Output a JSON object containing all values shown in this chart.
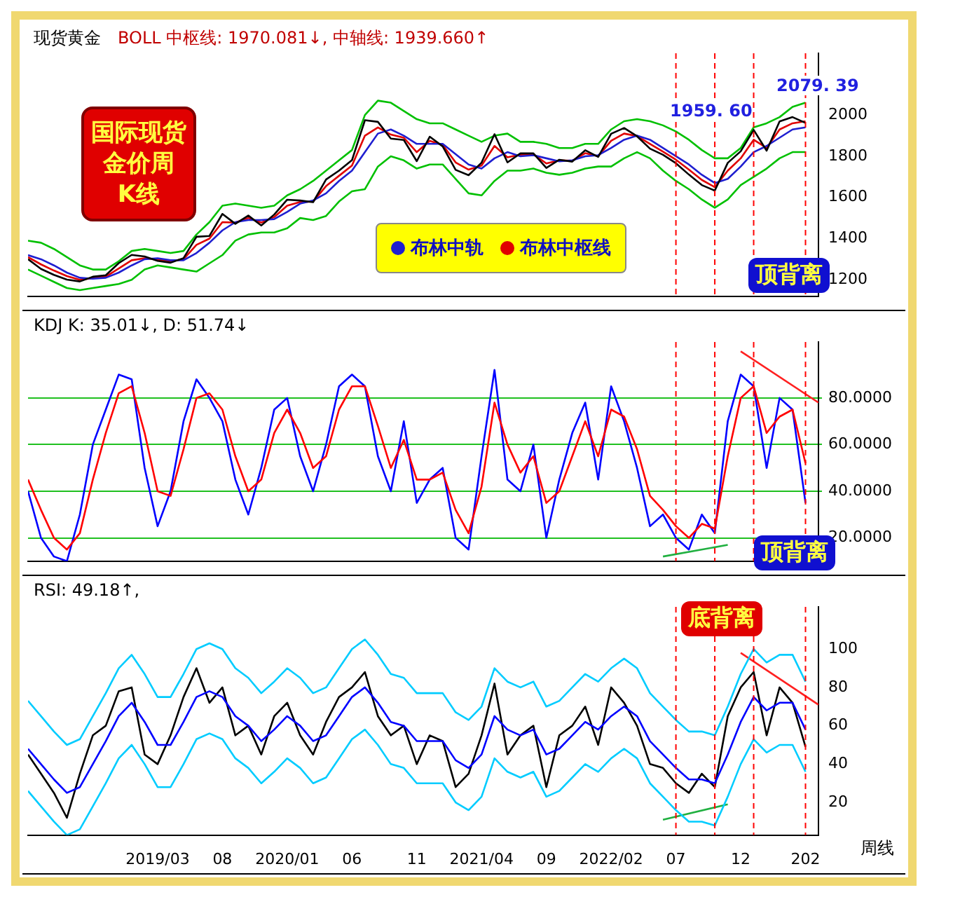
{
  "chart_data": [
    {
      "type": "line",
      "title": "现货黄金",
      "subtitle": "BOLL 中枢线: 1970.081↓, 中轴线: 1939.660↑",
      "xlim": [
        "2018-05",
        "2023-06"
      ],
      "ylim": [
        1120,
        2300
      ],
      "yticks": [
        1200,
        1400,
        1600,
        1800,
        2000
      ],
      "tick_labels": "y",
      "legend": "bottom",
      "x": [
        "2018-05",
        "2018-06",
        "2018-07",
        "2018-08",
        "2018-09",
        "2018-10",
        "2018-11",
        "2018-12",
        "2019-01",
        "2019-02",
        "2019-03",
        "2019-04",
        "2019-05",
        "2019-06",
        "2019-07",
        "2019-08",
        "2019-09",
        "2019-10",
        "2019-11",
        "2019-12",
        "2020-01",
        "2020-02",
        "2020-03",
        "2020-04",
        "2020-05",
        "2020-06",
        "2020-07",
        "2020-08",
        "2020-09",
        "2020-10",
        "2020-11",
        "2020-12",
        "2021-01",
        "2021-02",
        "2021-03",
        "2021-04",
        "2021-05",
        "2021-06",
        "2021-07",
        "2021-08",
        "2021-09",
        "2021-10",
        "2021-11",
        "2021-12",
        "2022-01",
        "2022-02",
        "2022-03",
        "2022-04",
        "2022-05",
        "2022-06",
        "2022-07",
        "2022-08",
        "2022-09",
        "2022-10",
        "2022-11",
        "2022-12",
        "2023-01",
        "2023-02",
        "2023-03",
        "2023-04",
        "2023-05"
      ],
      "series": [
        {
          "color": "#000000",
          "values": [
            1300,
            1253,
            1224,
            1201,
            1192,
            1215,
            1222,
            1281,
            1321,
            1313,
            1292,
            1283,
            1305,
            1409,
            1413,
            1520,
            1472,
            1512,
            1464,
            1517,
            1589,
            1585,
            1577,
            1687,
            1730,
            1781,
            1975,
            1967,
            1886,
            1879,
            1776,
            1895,
            1848,
            1734,
            1708,
            1769,
            1907,
            1770,
            1814,
            1814,
            1743,
            1783,
            1774,
            1829,
            1797,
            1909,
            1937,
            1897,
            1837,
            1807,
            1766,
            1711,
            1660,
            1633,
            1768,
            1824,
            1928,
            1827,
            1969,
            1990,
            1962
          ]
        },
        {
          "color": "#00c000",
          "values": [
            1390,
            1380,
            1350,
            1310,
            1270,
            1250,
            1250,
            1290,
            1340,
            1350,
            1340,
            1330,
            1340,
            1420,
            1480,
            1560,
            1570,
            1560,
            1550,
            1560,
            1610,
            1640,
            1680,
            1730,
            1780,
            1830,
            2000,
            2070,
            2060,
            2020,
            1980,
            1960,
            1960,
            1930,
            1900,
            1870,
            1900,
            1910,
            1870,
            1870,
            1860,
            1840,
            1840,
            1860,
            1860,
            1930,
            1970,
            1980,
            1970,
            1950,
            1920,
            1880,
            1830,
            1790,
            1790,
            1840,
            1940,
            1960,
            1990,
            2040,
            2060
          ]
        },
        {
          "color": "#00c000",
          "values": [
            1250,
            1220,
            1190,
            1160,
            1150,
            1160,
            1170,
            1180,
            1200,
            1250,
            1270,
            1260,
            1250,
            1240,
            1280,
            1320,
            1390,
            1420,
            1430,
            1430,
            1450,
            1500,
            1490,
            1510,
            1580,
            1630,
            1640,
            1750,
            1800,
            1780,
            1740,
            1760,
            1760,
            1690,
            1620,
            1610,
            1680,
            1730,
            1730,
            1740,
            1720,
            1710,
            1720,
            1740,
            1750,
            1750,
            1790,
            1820,
            1790,
            1730,
            1680,
            1640,
            1590,
            1550,
            1590,
            1660,
            1700,
            1740,
            1790,
            1820,
            1820
          ]
        },
        {
          "name": "布林中轨",
          "color": "#1f1fd0",
          "values": [
            1320,
            1300,
            1270,
            1235,
            1210,
            1205,
            1210,
            1235,
            1270,
            1300,
            1305,
            1295,
            1295,
            1330,
            1380,
            1440,
            1480,
            1490,
            1490,
            1495,
            1530,
            1570,
            1585,
            1620,
            1680,
            1730,
            1820,
            1910,
            1930,
            1900,
            1860,
            1860,
            1860,
            1810,
            1760,
            1740,
            1790,
            1820,
            1800,
            1805,
            1790,
            1775,
            1780,
            1800,
            1805,
            1840,
            1880,
            1900,
            1880,
            1840,
            1800,
            1760,
            1710,
            1670,
            1690,
            1750,
            1820,
            1850,
            1890,
            1930,
            1940
          ]
        },
        {
          "name": "布林中枢线",
          "color": "#e00000",
          "values": [
            1310,
            1275,
            1245,
            1218,
            1200,
            1208,
            1215,
            1255,
            1295,
            1305,
            1298,
            1290,
            1300,
            1370,
            1400,
            1480,
            1478,
            1500,
            1478,
            1505,
            1560,
            1578,
            1580,
            1655,
            1705,
            1755,
            1900,
            1940,
            1905,
            1890,
            1820,
            1875,
            1855,
            1770,
            1735,
            1755,
            1850,
            1795,
            1808,
            1810,
            1765,
            1780,
            1778,
            1815,
            1800,
            1875,
            1910,
            1898,
            1860,
            1822,
            1783,
            1735,
            1685,
            1650,
            1730,
            1790,
            1880,
            1840,
            1930,
            1960,
            1970
          ]
        }
      ],
      "ref_lines": [
        {
          "axis": "x",
          "value": "2022-07",
          "color": "#ff0000",
          "line_style": "dashed"
        },
        {
          "axis": "x",
          "value": "2022-10",
          "color": "#ff0000",
          "line_style": "dashed"
        },
        {
          "axis": "x",
          "value": "2023-01",
          "color": "#ff0000",
          "line_style": "dashed"
        },
        {
          "axis": "x",
          "value": "2023-05",
          "color": "#ff0000",
          "line_style": "dashed"
        }
      ],
      "annotations": [
        "国际现货金价周 K线",
        "2079. 39",
        "1959. 60",
        "顶背离"
      ]
    },
    {
      "type": "line",
      "title": "KDJ K: 35.01↓, D: 51.74↓",
      "xlim": [
        "2018-05",
        "2023-06"
      ],
      "ylim": [
        10,
        104
      ],
      "yticks": [
        {
          "value": 20,
          "label": "20.0000"
        },
        {
          "value": 40,
          "label": "40.0000"
        },
        {
          "value": 60,
          "label": "60.0000"
        },
        {
          "value": 80,
          "label": "80.0000"
        }
      ],
      "tick_labels": "y",
      "grid": "y",
      "x": [
        "2018-05",
        "2018-06",
        "2018-07",
        "2018-08",
        "2018-09",
        "2018-10",
        "2018-11",
        "2018-12",
        "2019-01",
        "2019-02",
        "2019-03",
        "2019-04",
        "2019-05",
        "2019-06",
        "2019-07",
        "2019-08",
        "2019-09",
        "2019-10",
        "2019-11",
        "2019-12",
        "2020-01",
        "2020-02",
        "2020-03",
        "2020-04",
        "2020-05",
        "2020-06",
        "2020-07",
        "2020-08",
        "2020-09",
        "2020-10",
        "2020-11",
        "2020-12",
        "2021-01",
        "2021-02",
        "2021-03",
        "2021-04",
        "2021-05",
        "2021-06",
        "2021-07",
        "2021-08",
        "2021-09",
        "2021-10",
        "2021-11",
        "2021-12",
        "2022-01",
        "2022-02",
        "2022-03",
        "2022-04",
        "2022-05",
        "2022-06",
        "2022-07",
        "2022-08",
        "2022-09",
        "2022-10",
        "2022-11",
        "2022-12",
        "2023-01",
        "2023-02",
        "2023-03",
        "2023-04",
        "2023-05"
      ],
      "series": [
        {
          "color": "#ff0000",
          "values": [
            45,
            32,
            20,
            15,
            22,
            45,
            65,
            82,
            85,
            65,
            40,
            38,
            58,
            80,
            82,
            75,
            55,
            40,
            45,
            65,
            75,
            65,
            50,
            55,
            75,
            85,
            85,
            68,
            50,
            62,
            45,
            45,
            48,
            32,
            22,
            42,
            78,
            60,
            48,
            55,
            35,
            40,
            55,
            70,
            55,
            75,
            72,
            58,
            38,
            32,
            25,
            20,
            26,
            24,
            55,
            80,
            85,
            65,
            72,
            75,
            52
          ]
        },
        {
          "color": "#0000ff",
          "values": [
            40,
            20,
            12,
            10,
            30,
            60,
            75,
            90,
            88,
            50,
            25,
            40,
            70,
            88,
            80,
            70,
            45,
            30,
            50,
            75,
            80,
            55,
            40,
            60,
            85,
            90,
            85,
            55,
            40,
            70,
            35,
            45,
            50,
            20,
            15,
            55,
            92,
            45,
            40,
            60,
            20,
            45,
            65,
            78,
            45,
            85,
            70,
            50,
            25,
            30,
            20,
            15,
            30,
            22,
            70,
            90,
            85,
            50,
            80,
            75,
            35
          ]
        },
        {
          "type": "line",
          "color": "#20b040",
          "x": [
            "2022-06",
            "2022-11"
          ],
          "values": [
            12,
            17
          ]
        },
        {
          "type": "line",
          "color": "#ff2020",
          "x": [
            "2022-12",
            "2023-06"
          ],
          "values": [
            100,
            78
          ]
        }
      ],
      "ref_lines": [
        {
          "axis": "x",
          "value": "2022-07",
          "color": "#ff0000",
          "line_style": "dashed"
        },
        {
          "axis": "x",
          "value": "2022-10",
          "color": "#ff0000",
          "line_style": "dashed"
        },
        {
          "axis": "x",
          "value": "2023-01",
          "color": "#ff0000",
          "line_style": "dashed"
        },
        {
          "axis": "x",
          "value": "2023-05",
          "color": "#ff0000",
          "line_style": "dashed"
        }
      ],
      "annotations": [
        "顶背离"
      ]
    },
    {
      "type": "line",
      "title": "RSI: 49.18↑,",
      "xlim": [
        "2018-05",
        "2023-06"
      ],
      "ylim": [
        3,
        122
      ],
      "yticks": [
        20,
        40,
        60,
        80,
        100
      ],
      "xticks": [
        {
          "value": "2019-03",
          "label": "2019/03"
        },
        {
          "value": "2019-08",
          "label": "08"
        },
        {
          "value": "2020-01",
          "label": "2020/01"
        },
        {
          "value": "2020-06",
          "label": "06"
        },
        {
          "value": "2020-11",
          "label": "11"
        },
        {
          "value": "2021-04",
          "label": "2021/04"
        },
        {
          "value": "2021-09",
          "label": "09"
        },
        {
          "value": "2022-02",
          "label": "2022/02"
        },
        {
          "value": "2022-07",
          "label": "07"
        },
        {
          "value": "2022-12",
          "label": "12"
        },
        {
          "value": "2023-05",
          "label": "202"
        }
      ],
      "x": [
        "2018-05",
        "2018-06",
        "2018-07",
        "2018-08",
        "2018-09",
        "2018-10",
        "2018-11",
        "2018-12",
        "2019-01",
        "2019-02",
        "2019-03",
        "2019-04",
        "2019-05",
        "2019-06",
        "2019-07",
        "2019-08",
        "2019-09",
        "2019-10",
        "2019-11",
        "2019-12",
        "2020-01",
        "2020-02",
        "2020-03",
        "2020-04",
        "2020-05",
        "2020-06",
        "2020-07",
        "2020-08",
        "2020-09",
        "2020-10",
        "2020-11",
        "2020-12",
        "2021-01",
        "2021-02",
        "2021-03",
        "2021-04",
        "2021-05",
        "2021-06",
        "2021-07",
        "2021-08",
        "2021-09",
        "2021-10",
        "2021-11",
        "2021-12",
        "2022-01",
        "2022-02",
        "2022-03",
        "2022-04",
        "2022-05",
        "2022-06",
        "2022-07",
        "2022-08",
        "2022-09",
        "2022-10",
        "2022-11",
        "2022-12",
        "2023-01",
        "2023-02",
        "2023-03",
        "2023-04",
        "2023-05"
      ],
      "series": [
        {
          "color": "#00ccff",
          "values": [
            73,
            65,
            57,
            50,
            53,
            65,
            77,
            90,
            97,
            87,
            75,
            75,
            87,
            100,
            103,
            100,
            90,
            85,
            77,
            83,
            90,
            85,
            77,
            80,
            90,
            100,
            105,
            97,
            87,
            85,
            77,
            77,
            77,
            67,
            63,
            70,
            90,
            83,
            80,
            83,
            70,
            73,
            80,
            87,
            83,
            90,
            95,
            90,
            77,
            70,
            63,
            57,
            57,
            55,
            70,
            87,
            100,
            93,
            97,
            97,
            83
          ]
        },
        {
          "color": "#00ccff",
          "values": [
            26,
            18,
            10,
            3,
            6,
            18,
            30,
            43,
            50,
            40,
            28,
            28,
            40,
            53,
            56,
            53,
            43,
            38,
            30,
            36,
            43,
            38,
            30,
            33,
            43,
            53,
            58,
            50,
            40,
            38,
            30,
            30,
            30,
            20,
            16,
            23,
            43,
            36,
            33,
            36,
            23,
            26,
            33,
            40,
            36,
            43,
            48,
            43,
            30,
            23,
            16,
            10,
            10,
            8,
            23,
            40,
            53,
            46,
            50,
            50,
            36
          ]
        },
        {
          "color": "#0000ff",
          "values": [
            48,
            40,
            32,
            25,
            28,
            40,
            52,
            65,
            72,
            62,
            50,
            50,
            62,
            75,
            78,
            75,
            65,
            60,
            52,
            58,
            65,
            60,
            52,
            55,
            65,
            75,
            80,
            72,
            62,
            60,
            52,
            52,
            52,
            42,
            38,
            45,
            65,
            58,
            55,
            58,
            45,
            48,
            55,
            62,
            58,
            65,
            70,
            65,
            52,
            45,
            38,
            32,
            32,
            30,
            45,
            62,
            75,
            68,
            72,
            72,
            58
          ]
        },
        {
          "color": "#000000",
          "values": [
            45,
            35,
            25,
            12,
            35,
            55,
            60,
            78,
            80,
            45,
            40,
            55,
            75,
            90,
            72,
            80,
            55,
            60,
            45,
            65,
            72,
            55,
            45,
            62,
            75,
            80,
            88,
            65,
            55,
            60,
            40,
            55,
            52,
            28,
            35,
            55,
            82,
            45,
            55,
            60,
            28,
            55,
            60,
            70,
            50,
            80,
            72,
            60,
            40,
            38,
            30,
            25,
            35,
            28,
            65,
            80,
            88,
            55,
            80,
            72,
            49
          ]
        },
        {
          "type": "line",
          "color": "#20b040",
          "x": [
            "2022-06",
            "2022-11"
          ],
          "values": [
            11,
            19
          ]
        },
        {
          "type": "line",
          "color": "#ff2020",
          "x": [
            "2022-12",
            "2023-06"
          ],
          "values": [
            98,
            71
          ]
        }
      ],
      "ref_lines": [
        {
          "axis": "x",
          "value": "2022-07",
          "color": "#ff0000",
          "line_style": "dashed"
        },
        {
          "axis": "x",
          "value": "2022-10",
          "color": "#ff0000",
          "line_style": "dashed"
        },
        {
          "axis": "x",
          "value": "2023-01",
          "color": "#ff0000",
          "line_style": "dashed"
        },
        {
          "axis": "x",
          "value": "2023-05",
          "color": "#ff0000",
          "line_style": "dashed"
        }
      ],
      "annotations": [
        "底背离",
        "周线"
      ]
    }
  ]
}
